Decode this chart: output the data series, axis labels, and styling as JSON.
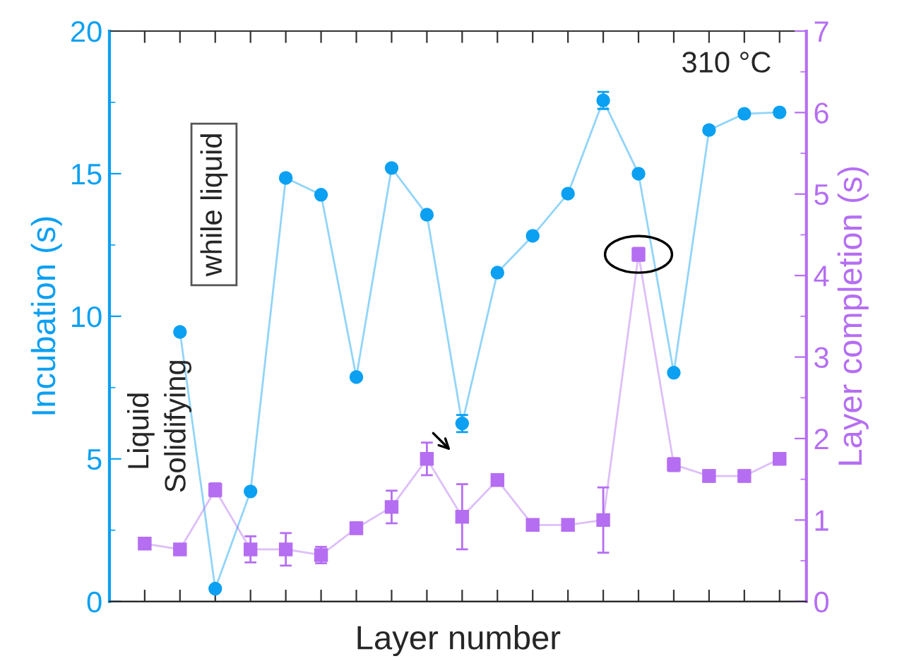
{
  "chart_data": {
    "type": "line",
    "xlabel": "Layer number",
    "ylabel": "Incubation (s)",
    "y2label": "Layer completion (s)",
    "categories": [
      null,
      null,
      null,
      null,
      null,
      null,
      null,
      null,
      null,
      null,
      null,
      null,
      null,
      null,
      null,
      null,
      null,
      null,
      null
    ],
    "tick_labels": "y",
    "grid": false,
    "legend": false,
    "line_style": "solid",
    "ylim": [
      0,
      20
    ],
    "yticks": [
      0,
      5,
      10,
      15,
      20
    ],
    "y2lim": [
      0,
      7
    ],
    "y2ticks": [
      0,
      1,
      2,
      3,
      4,
      5,
      6,
      7
    ],
    "series": [
      {
        "color": "#0ba0f2",
        "marker": "circle",
        "values": [
          null,
          9.45,
          0.45,
          3.86,
          14.85,
          14.26,
          7.87,
          15.2,
          13.56,
          6.24,
          11.53,
          12.82,
          14.3,
          17.57,
          15.0,
          8.02,
          16.53,
          17.1,
          17.15
        ],
        "errors": [
          null,
          null,
          null,
          null,
          null,
          null,
          null,
          null,
          null,
          0.3,
          null,
          null,
          null,
          0.3,
          null,
          null,
          null,
          null,
          null
        ]
      },
      {
        "color": "#b56ef2",
        "marker": "square",
        "axis": "y2",
        "values": [
          0.71,
          0.64,
          1.37,
          0.64,
          0.64,
          0.57,
          0.9,
          1.16,
          1.75,
          1.04,
          1.49,
          0.94,
          0.94,
          1.0,
          4.26,
          1.68,
          1.54,
          1.54,
          1.75
        ],
        "errors": [
          null,
          null,
          0.08,
          0.16,
          0.2,
          0.1,
          0.07,
          0.2,
          0.2,
          0.4,
          0.06,
          null,
          null,
          0.4,
          0.08,
          0.08,
          0.07,
          0.07,
          null
        ]
      }
    ],
    "annotations": [
      "Liquid",
      "Solidifying",
      "while liquid",
      "310 °C"
    ]
  }
}
